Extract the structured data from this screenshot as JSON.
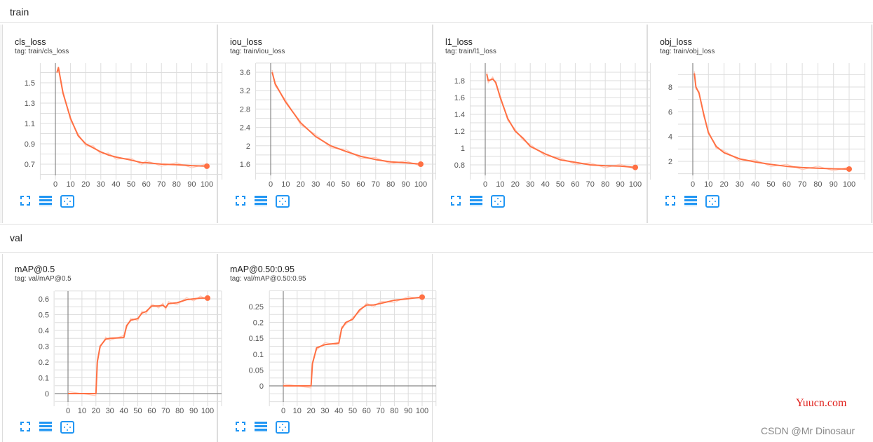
{
  "sections": [
    {
      "label": "train"
    },
    {
      "label": "val"
    }
  ],
  "colors": {
    "line": "#ff7043",
    "line_raw": "#ffccbc",
    "grid": "#dddddd",
    "axis": "#888888",
    "icon": "#2196f3"
  },
  "card_icons": [
    "fullscreen-icon",
    "data-selection-icon",
    "fit-domain-icon"
  ],
  "watermarks": {
    "site": "Yuucn.com",
    "author": "CSDN @Mr Dinosaur"
  },
  "chart_data": [
    {
      "type": "line",
      "title": "cls_loss",
      "tag": "tag: train/cls_loss",
      "xlim": [
        -10,
        110
      ],
      "ylim": [
        0.6,
        1.69
      ],
      "xticks": [
        0,
        10,
        20,
        30,
        40,
        50,
        60,
        70,
        80,
        90,
        100
      ],
      "xtick_labels": [
        "0",
        "10",
        "20",
        "30",
        "40",
        "50",
        "60",
        "70",
        "80",
        "90",
        "100"
      ],
      "yticks": [
        0.7,
        0.9,
        1.1,
        1.3,
        1.5
      ],
      "ytick_labels": [
        "0.7",
        "0.9",
        "1.1",
        "1.3",
        "1.5"
      ],
      "x": [
        1,
        2,
        5,
        10,
        15,
        20,
        25,
        30,
        35,
        40,
        50,
        57,
        60,
        70,
        80,
        90,
        100
      ],
      "y": [
        1.6,
        1.65,
        1.4,
        1.15,
        0.98,
        0.9,
        0.86,
        0.82,
        0.79,
        0.77,
        0.74,
        0.715,
        0.715,
        0.7,
        0.695,
        0.685,
        0.68
      ]
    },
    {
      "type": "line",
      "title": "iou_loss",
      "tag": "tag: train/iou_loss",
      "xlim": [
        -10,
        110
      ],
      "ylim": [
        1.4,
        3.8
      ],
      "xticks": [
        0,
        10,
        20,
        30,
        40,
        50,
        60,
        70,
        80,
        90,
        100
      ],
      "xtick_labels": [
        "0",
        "10",
        "20",
        "30",
        "40",
        "50",
        "60",
        "70",
        "80",
        "90",
        "100"
      ],
      "yticks": [
        1.6,
        2,
        2.4,
        2.8,
        3.2,
        3.6
      ],
      "ytick_labels": [
        "1.6",
        "2",
        "2.4",
        "2.8",
        "3.2",
        "3.6"
      ],
      "x": [
        1,
        3,
        10,
        20,
        30,
        40,
        50,
        60,
        70,
        80,
        90,
        100
      ],
      "y": [
        3.6,
        3.35,
        2.95,
        2.5,
        2.2,
        2.0,
        1.88,
        1.77,
        1.7,
        1.65,
        1.63,
        1.6
      ]
    },
    {
      "type": "line",
      "title": "l1_loss",
      "tag": "tag: train/l1_loss",
      "xlim": [
        -10,
        110
      ],
      "ylim": [
        0.68,
        1.9
      ],
      "xticks": [
        0,
        10,
        20,
        30,
        40,
        50,
        60,
        70,
        80,
        90,
        100
      ],
      "xtick_labels": [
        "0",
        "10",
        "20",
        "30",
        "40",
        "50",
        "60",
        "70",
        "80",
        "90",
        "100"
      ],
      "yticks": [
        0.8,
        1,
        1.2,
        1.4,
        1.6,
        1.8
      ],
      "ytick_labels": [
        "0.8",
        "1",
        "1.2",
        "1.4",
        "1.6",
        "1.8"
      ],
      "x": [
        1,
        2,
        5,
        7,
        10,
        15,
        20,
        25,
        30,
        40,
        50,
        60,
        70,
        80,
        90,
        100
      ],
      "y": [
        1.88,
        1.8,
        1.82,
        1.78,
        1.6,
        1.35,
        1.2,
        1.12,
        1.02,
        0.93,
        0.86,
        0.83,
        0.8,
        0.79,
        0.785,
        0.77
      ]
    },
    {
      "type": "line",
      "title": "obj_loss",
      "tag": "tag: train/obj_loss",
      "xlim": [
        -10,
        110
      ],
      "ylim": [
        0.7,
        9.9
      ],
      "xticks": [
        0,
        10,
        20,
        30,
        40,
        50,
        60,
        70,
        80,
        90,
        100
      ],
      "xtick_labels": [
        "0",
        "10",
        "20",
        "30",
        "40",
        "50",
        "60",
        "70",
        "80",
        "90",
        "100"
      ],
      "yticks": [
        2,
        4,
        6,
        8
      ],
      "ytick_labels": [
        "2",
        "4",
        "6",
        "8"
      ],
      "x": [
        1,
        2,
        4,
        7,
        10,
        15,
        20,
        30,
        40,
        50,
        60,
        70,
        80,
        90,
        100
      ],
      "y": [
        9.1,
        8,
        7.5,
        5.8,
        4.3,
        3.2,
        2.7,
        2.2,
        1.95,
        1.75,
        1.6,
        1.5,
        1.45,
        1.4,
        1.38
      ]
    },
    {
      "type": "line",
      "title": "mAP@0.5",
      "tag": "tag: val/mAP@0.5",
      "xlim": [
        -10,
        110
      ],
      "ylim": [
        -0.05,
        0.65
      ],
      "xticks": [
        0,
        10,
        20,
        30,
        40,
        50,
        60,
        70,
        80,
        90,
        100
      ],
      "xtick_labels": [
        "0",
        "10",
        "20",
        "30",
        "40",
        "50",
        "60",
        "70",
        "80",
        "90",
        "100"
      ],
      "yticks": [
        0,
        0.1,
        0.2,
        0.3,
        0.4,
        0.5,
        0.6
      ],
      "ytick_labels": [
        "0",
        "0.1",
        "0.2",
        "0.3",
        "0.4",
        "0.5",
        "0.6"
      ],
      "x": [
        0,
        20,
        21,
        23,
        27,
        30,
        40,
        42,
        45,
        50,
        53,
        56,
        60,
        65,
        68,
        70,
        72,
        78,
        85,
        90,
        95,
        100
      ],
      "y": [
        0,
        0,
        0.2,
        0.3,
        0.345,
        0.35,
        0.355,
        0.43,
        0.465,
        0.475,
        0.51,
        0.52,
        0.555,
        0.555,
        0.56,
        0.545,
        0.57,
        0.575,
        0.595,
        0.6,
        0.605,
        0.605
      ]
    },
    {
      "type": "line",
      "title": "mAP@0.50:0.95",
      "tag": "tag: val/mAP@0.50:0.95",
      "xlim": [
        -10,
        110
      ],
      "ylim": [
        -0.025,
        0.3
      ],
      "xticks": [
        0,
        10,
        20,
        30,
        40,
        50,
        60,
        70,
        80,
        90,
        100
      ],
      "xtick_labels": [
        "0",
        "10",
        "20",
        "30",
        "40",
        "50",
        "60",
        "70",
        "80",
        "90",
        "100"
      ],
      "yticks": [
        0,
        0.05,
        0.1,
        0.15,
        0.2,
        0.25
      ],
      "ytick_labels": [
        "0",
        "0.05",
        "0.1",
        "0.15",
        "0.2",
        "0.25"
      ],
      "x": [
        0,
        20,
        21,
        24,
        30,
        40,
        42,
        45,
        50,
        55,
        60,
        65,
        70,
        80,
        90,
        100
      ],
      "y": [
        0,
        0,
        0.07,
        0.12,
        0.13,
        0.135,
        0.18,
        0.2,
        0.21,
        0.24,
        0.255,
        0.255,
        0.26,
        0.27,
        0.275,
        0.28
      ]
    }
  ]
}
